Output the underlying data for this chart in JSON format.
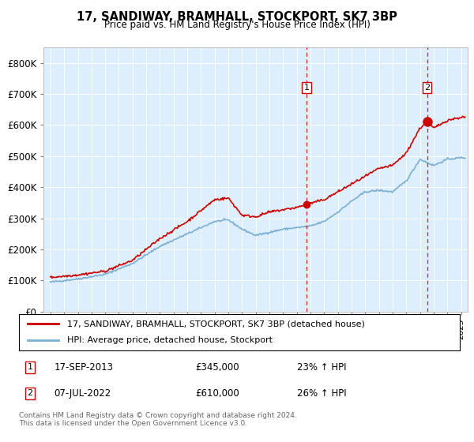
{
  "title": "17, SANDIWAY, BRAMHALL, STOCKPORT, SK7 3BP",
  "subtitle": "Price paid vs. HM Land Registry's House Price Index (HPI)",
  "ylabel_ticks": [
    "£0",
    "£100K",
    "£200K",
    "£300K",
    "£400K",
    "£500K",
    "£600K",
    "£700K",
    "£800K"
  ],
  "ytick_values": [
    0,
    100000,
    200000,
    300000,
    400000,
    500000,
    600000,
    700000,
    800000
  ],
  "ylim": [
    0,
    850000
  ],
  "xlim_start": 1994.5,
  "xlim_end": 2025.5,
  "house_color": "#cc0000",
  "hpi_color": "#7bafd4",
  "background_color": "#ddeeff",
  "grid_color": "#ffffff",
  "marker1_date": 2013.72,
  "marker1_price": 345000,
  "marker1_label": "1",
  "marker2_date": 2022.52,
  "marker2_price": 610000,
  "marker2_label": "2",
  "legend_house": "17, SANDIWAY, BRAMHALL, STOCKPORT, SK7 3BP (detached house)",
  "legend_hpi": "HPI: Average price, detached house, Stockport",
  "annotation1_date": "17-SEP-2013",
  "annotation1_price": "£345,000",
  "annotation1_hpi": "23% ↑ HPI",
  "annotation2_date": "07-JUL-2022",
  "annotation2_price": "£610,000",
  "annotation2_hpi": "26% ↑ HPI",
  "footer": "Contains HM Land Registry data © Crown copyright and database right 2024.\nThis data is licensed under the Open Government Licence v3.0."
}
